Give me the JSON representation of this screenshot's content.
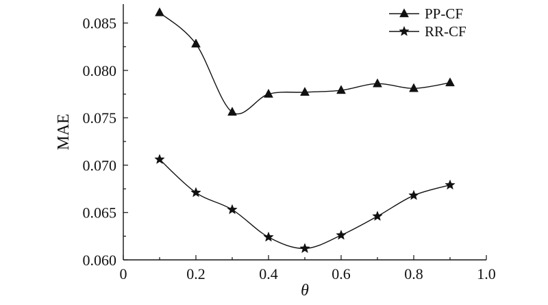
{
  "chart_data": {
    "type": "line",
    "xlabel": "θ",
    "ylabel": "MAE",
    "xlim": [
      0,
      1.0
    ],
    "ylim": [
      0.06,
      0.087
    ],
    "x_ticks": [
      "0",
      "0.2",
      "0.4",
      "0.6",
      "0.8",
      "1.0"
    ],
    "y_ticks": [
      "0.060",
      "0.065",
      "0.070",
      "0.075",
      "0.080",
      "0.085"
    ],
    "x": [
      0.1,
      0.2,
      0.3,
      0.4,
      0.5,
      0.6,
      0.7,
      0.8,
      0.9
    ],
    "series": [
      {
        "name": "PP-CF",
        "marker": "triangle",
        "values": [
          0.0861,
          0.0828,
          0.0756,
          0.0775,
          0.0777,
          0.0779,
          0.0786,
          0.0781,
          0.0787
        ]
      },
      {
        "name": "RR-CF",
        "marker": "star",
        "values": [
          0.0706,
          0.0671,
          0.0653,
          0.0624,
          0.0612,
          0.0626,
          0.0646,
          0.0668,
          0.0679
        ]
      }
    ],
    "legend_position": "top-right",
    "grid": false,
    "colors": {
      "line": "#111111",
      "background": "#ffffff"
    }
  }
}
